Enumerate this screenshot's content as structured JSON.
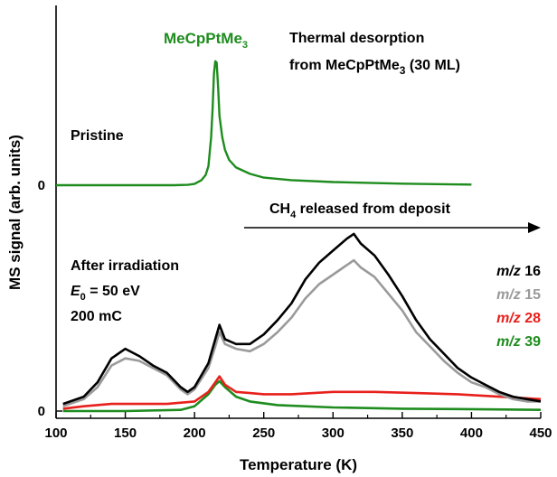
{
  "chart_data": {
    "type": "line",
    "title": "Thermal desorption",
    "subtitle": "from MeCpPtMe",
    "subtitle_sub": "3",
    "subtitle_tail": " (30 ML)",
    "xlabel": "Temperature (K)",
    "ylabel": "MS signal (arb. units)",
    "xlim": [
      100,
      450
    ],
    "x_ticks": [
      "100",
      "150",
      "200",
      "250",
      "300",
      "350",
      "400",
      "450"
    ],
    "y_tick_label": "0",
    "grid": false,
    "panels": {
      "pristine": {
        "label": "Pristine",
        "peak_label": "MeCpPtMe",
        "peak_label_sub": "3",
        "color": "#1e8c1e",
        "points": [
          [
            100,
            0.0
          ],
          [
            150,
            0.0
          ],
          [
            185,
            0.0
          ],
          [
            195,
            0.003
          ],
          [
            200,
            0.01
          ],
          [
            205,
            0.04
          ],
          [
            208,
            0.08
          ],
          [
            210,
            0.15
          ],
          [
            212,
            0.38
          ],
          [
            213,
            0.6
          ],
          [
            214,
            0.88
          ],
          [
            215,
            0.98
          ],
          [
            216,
            0.97
          ],
          [
            217,
            0.78
          ],
          [
            218,
            0.55
          ],
          [
            220,
            0.38
          ],
          [
            222,
            0.28
          ],
          [
            225,
            0.2
          ],
          [
            230,
            0.14
          ],
          [
            240,
            0.09
          ],
          [
            250,
            0.06
          ],
          [
            270,
            0.04
          ],
          [
            300,
            0.025
          ],
          [
            350,
            0.012
          ],
          [
            400,
            0.005
          ]
        ]
      },
      "after_irradiation": {
        "label_line1": "After irradiation",
        "label_line2_symbol": "E",
        "label_line2_sub": "0",
        "label_line2_rest": " = 50 eV",
        "label_line3": "200 mC",
        "arrow_text": "CH",
        "arrow_text_sub": "4",
        "arrow_text_rest": " released from deposit",
        "series": [
          {
            "name": "16",
            "prefix": "m/z",
            "color": "#000000",
            "points": [
              [
                105,
                0.03
              ],
              [
                120,
                0.06
              ],
              [
                130,
                0.12
              ],
              [
                140,
                0.22
              ],
              [
                150,
                0.26
              ],
              [
                160,
                0.23
              ],
              [
                170,
                0.19
              ],
              [
                180,
                0.16
              ],
              [
                190,
                0.1
              ],
              [
                195,
                0.08
              ],
              [
                200,
                0.1
              ],
              [
                210,
                0.2
              ],
              [
                215,
                0.3
              ],
              [
                218,
                0.36
              ],
              [
                222,
                0.3
              ],
              [
                230,
                0.28
              ],
              [
                240,
                0.28
              ],
              [
                250,
                0.32
              ],
              [
                260,
                0.38
              ],
              [
                270,
                0.45
              ],
              [
                280,
                0.55
              ],
              [
                290,
                0.62
              ],
              [
                300,
                0.67
              ],
              [
                310,
                0.72
              ],
              [
                315,
                0.74
              ],
              [
                320,
                0.7
              ],
              [
                330,
                0.65
              ],
              [
                340,
                0.57
              ],
              [
                350,
                0.48
              ],
              [
                360,
                0.38
              ],
              [
                370,
                0.3
              ],
              [
                380,
                0.24
              ],
              [
                390,
                0.18
              ],
              [
                400,
                0.14
              ],
              [
                410,
                0.11
              ],
              [
                420,
                0.08
              ],
              [
                430,
                0.06
              ],
              [
                440,
                0.05
              ],
              [
                450,
                0.04
              ]
            ]
          },
          {
            "name": "15",
            "prefix": "m/z",
            "color": "#9a9a9a",
            "points": [
              [
                105,
                0.02
              ],
              [
                120,
                0.05
              ],
              [
                130,
                0.1
              ],
              [
                140,
                0.19
              ],
              [
                150,
                0.22
              ],
              [
                160,
                0.21
              ],
              [
                170,
                0.18
              ],
              [
                180,
                0.15
              ],
              [
                190,
                0.09
              ],
              [
                195,
                0.07
              ],
              [
                200,
                0.09
              ],
              [
                210,
                0.18
              ],
              [
                215,
                0.27
              ],
              [
                218,
                0.33
              ],
              [
                222,
                0.28
              ],
              [
                230,
                0.26
              ],
              [
                240,
                0.25
              ],
              [
                250,
                0.28
              ],
              [
                260,
                0.33
              ],
              [
                270,
                0.39
              ],
              [
                280,
                0.47
              ],
              [
                290,
                0.53
              ],
              [
                300,
                0.57
              ],
              [
                310,
                0.61
              ],
              [
                315,
                0.63
              ],
              [
                320,
                0.6
              ],
              [
                330,
                0.56
              ],
              [
                340,
                0.49
              ],
              [
                350,
                0.42
              ],
              [
                360,
                0.33
              ],
              [
                370,
                0.27
              ],
              [
                380,
                0.21
              ],
              [
                390,
                0.16
              ],
              [
                400,
                0.12
              ],
              [
                410,
                0.1
              ],
              [
                420,
                0.07
              ],
              [
                430,
                0.05
              ],
              [
                440,
                0.04
              ],
              [
                450,
                0.04
              ]
            ]
          },
          {
            "name": "28",
            "prefix": "m/z",
            "color": "#e8201c",
            "points": [
              [
                105,
                0.01
              ],
              [
                120,
                0.02
              ],
              [
                140,
                0.03
              ],
              [
                160,
                0.03
              ],
              [
                180,
                0.03
              ],
              [
                200,
                0.04
              ],
              [
                210,
                0.08
              ],
              [
                215,
                0.12
              ],
              [
                218,
                0.145
              ],
              [
                222,
                0.11
              ],
              [
                230,
                0.08
              ],
              [
                240,
                0.075
              ],
              [
                250,
                0.07
              ],
              [
                270,
                0.07
              ],
              [
                300,
                0.08
              ],
              [
                330,
                0.08
              ],
              [
                360,
                0.075
              ],
              [
                390,
                0.07
              ],
              [
                420,
                0.06
              ],
              [
                450,
                0.05
              ]
            ]
          },
          {
            "name": "39",
            "prefix": "m/z",
            "color": "#1e8c1e",
            "points": [
              [
                105,
                0.0
              ],
              [
                150,
                0.0
              ],
              [
                190,
                0.005
              ],
              [
                200,
                0.02
              ],
              [
                210,
                0.07
              ],
              [
                215,
                0.11
              ],
              [
                218,
                0.125
              ],
              [
                222,
                0.1
              ],
              [
                230,
                0.06
              ],
              [
                240,
                0.04
              ],
              [
                260,
                0.025
              ],
              [
                300,
                0.015
              ],
              [
                350,
                0.01
              ],
              [
                400,
                0.008
              ],
              [
                450,
                0.005
              ]
            ]
          }
        ]
      }
    }
  }
}
